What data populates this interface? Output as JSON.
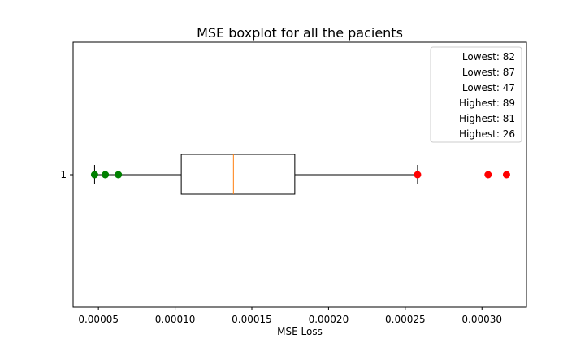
{
  "chart_data": {
    "type": "boxplot",
    "orientation": "horizontal",
    "title": "MSE boxplot for all the pacients",
    "xlabel": "MSE Loss",
    "ylabel": "",
    "xlim": [
      3.35e-05,
      0.000329
    ],
    "x_ticks": [
      5e-05,
      0.0001,
      0.00015,
      0.0002,
      0.00025,
      0.0003
    ],
    "x_tick_labels": [
      "0.00005",
      "0.00010",
      "0.00015",
      "0.00020",
      "0.00025",
      "0.00030"
    ],
    "y_ticks": [
      1
    ],
    "y_tick_labels": [
      "1"
    ],
    "box": {
      "position": 1,
      "whisker_low": 4.75e-05,
      "q1": 0.000104,
      "median": 0.000138,
      "q3": 0.000178,
      "whisker_high": 0.000258
    },
    "lowest_points": [
      {
        "x": 4.75e-05,
        "patient": 82
      },
      {
        "x": 5.45e-05,
        "patient": 87
      },
      {
        "x": 6.3e-05,
        "patient": 47
      }
    ],
    "highest_points": [
      {
        "x": 0.000258,
        "patient": 89
      },
      {
        "x": 0.000304,
        "patient": 81
      },
      {
        "x": 0.000316,
        "patient": 26
      }
    ],
    "legend": {
      "position": "top-right",
      "entries": [
        "Lowest: 82",
        "Lowest: 87",
        "Lowest: 47",
        "Highest: 89",
        "Highest: 81",
        "Highest: 26"
      ]
    },
    "colors": {
      "box": "#000000",
      "median": "#ff7f0e",
      "lowest": "#008000",
      "highest": "#ff0000"
    },
    "grid": false
  }
}
